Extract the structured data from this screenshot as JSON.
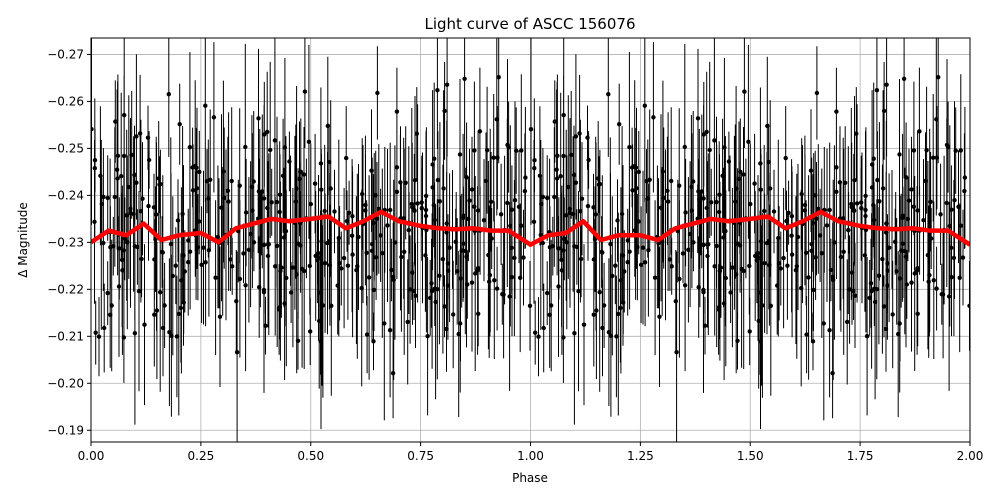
{
  "chart_data": {
    "type": "scatter",
    "title": "Light curve of ASCC 156076",
    "xlabel": "Phase",
    "ylabel": "Δ Magnitude",
    "xlim": [
      0.0,
      2.0
    ],
    "ylim": [
      -0.1875,
      -0.2735
    ],
    "y_axis_inverted": true,
    "grid": true,
    "legend": "none",
    "x_ticks": [
      0.0,
      0.25,
      0.5,
      0.75,
      1.0,
      1.25,
      1.5,
      1.75,
      2.0
    ],
    "x_tick_labels": [
      "0.00",
      "0.25",
      "0.50",
      "0.75",
      "1.00",
      "1.25",
      "1.50",
      "1.75",
      "2.00"
    ],
    "y_ticks": [
      -0.27,
      -0.26,
      -0.25,
      -0.24,
      -0.23,
      -0.22,
      -0.21,
      -0.2,
      -0.19
    ],
    "y_tick_labels": [
      "−0.27",
      "−0.26",
      "−0.25",
      "−0.24",
      "−0.23",
      "−0.22",
      "−0.21",
      "−0.20",
      "−0.19"
    ],
    "series": [
      {
        "style": "black points with error bars",
        "color": "#000000",
        "n_points": 800,
        "mean": -0.232,
        "scatter_sd": 0.013,
        "errorbar_halfwidth": [
          0.006,
          0.022
        ],
        "periodic_in_phase": 1.0
      },
      {
        "style": "thick red binned trend line",
        "color": "#ff0000",
        "x": [
          0.0,
          0.04,
          0.08,
          0.12,
          0.16,
          0.2,
          0.25,
          0.29,
          0.33,
          0.37,
          0.41,
          0.45,
          0.5,
          0.54,
          0.58,
          0.62,
          0.66,
          0.7,
          0.75,
          0.79,
          0.83,
          0.87,
          0.91,
          0.95,
          1.0,
          1.04,
          1.08,
          1.12,
          1.16,
          1.2,
          1.25,
          1.29,
          1.33,
          1.37,
          1.41,
          1.45,
          1.5,
          1.54,
          1.58,
          1.62,
          1.66,
          1.7,
          1.75,
          1.79,
          1.83,
          1.87,
          1.91,
          1.95,
          2.0
        ],
        "y": [
          -0.23,
          -0.2325,
          -0.2315,
          -0.234,
          -0.2305,
          -0.2315,
          -0.232,
          -0.23,
          -0.233,
          -0.234,
          -0.235,
          -0.2345,
          -0.235,
          -0.2355,
          -0.233,
          -0.2345,
          -0.2365,
          -0.2345,
          -0.2335,
          -0.233,
          -0.2328,
          -0.233,
          -0.2325,
          -0.2325,
          -0.2295,
          -0.2315,
          -0.232,
          -0.2345,
          -0.2305,
          -0.2315,
          -0.2315,
          -0.2305,
          -0.233,
          -0.234,
          -0.235,
          -0.2345,
          -0.235,
          -0.2355,
          -0.233,
          -0.2345,
          -0.2365,
          -0.2345,
          -0.2335,
          -0.233,
          -0.2328,
          -0.233,
          -0.2325,
          -0.2325,
          -0.2295
        ]
      }
    ]
  }
}
